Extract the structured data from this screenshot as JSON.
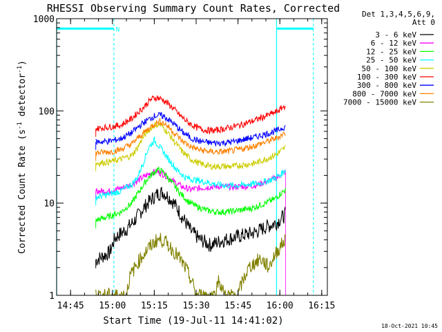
{
  "chart_data": {
    "type": "line",
    "title": "RHESSI Observing Summary Count Rates, Corrected",
    "xlabel": "Start Time (19-Jul-11 14:41:02)",
    "ylabel_pre": "Corrected Count Rate (s",
    "ylabel_sup1": "-1",
    "ylabel_mid": " detector",
    "ylabel_sup2": "-1",
    "ylabel_post": ")",
    "x_unit": "minutes after 14:41:02",
    "xlim": [
      -1.03,
      96.0
    ],
    "ylim": [
      1,
      1000
    ],
    "yscale": "log",
    "xticks": [
      {
        "v": 3.97,
        "label": "14:45"
      },
      {
        "v": 18.97,
        "label": "15:00"
      },
      {
        "v": 33.97,
        "label": "15:15"
      },
      {
        "v": 48.97,
        "label": "15:30"
      },
      {
        "v": 63.97,
        "label": "15:45"
      },
      {
        "v": 78.97,
        "label": "16:00"
      },
      {
        "v": 93.97,
        "label": "16:15"
      }
    ],
    "yticks": [
      {
        "v": 1,
        "label": "1"
      },
      {
        "v": 10,
        "label": "10"
      },
      {
        "v": 100,
        "label": "100"
      },
      {
        "v": 1000,
        "label": "1000"
      }
    ],
    "legend_header": [
      "Det 1,3,4,5,6,9,",
      "Att 0"
    ],
    "data_window": [
      13.0,
      81.0
    ],
    "series": [
      {
        "name": "3 - 6 keV",
        "color": "#000000",
        "points": [
          [
            13,
            2.4
          ],
          [
            18,
            2.9
          ],
          [
            20,
            4.2
          ],
          [
            24,
            5.2
          ],
          [
            27,
            6.5
          ],
          [
            31,
            9.5
          ],
          [
            35,
            12.5
          ],
          [
            37,
            13.2
          ],
          [
            40,
            11
          ],
          [
            44,
            7
          ],
          [
            47,
            5
          ],
          [
            50,
            4.1
          ],
          [
            54,
            3.5
          ],
          [
            58,
            3.9
          ],
          [
            62,
            4.2
          ],
          [
            66,
            4.5
          ],
          [
            70,
            4.8
          ],
          [
            74,
            5.5
          ],
          [
            78,
            6.2
          ],
          [
            81,
            7.5
          ]
        ]
      },
      {
        "name": "6 - 12 keV",
        "color": "#ff00ff",
        "points": [
          [
            13,
            13.5
          ],
          [
            18,
            13.5
          ],
          [
            22,
            14.5
          ],
          [
            26,
            16
          ],
          [
            30,
            19
          ],
          [
            33,
            21.5
          ],
          [
            35,
            22
          ],
          [
            38,
            20
          ],
          [
            41,
            17
          ],
          [
            44,
            15
          ],
          [
            47,
            14
          ],
          [
            50,
            14.5
          ],
          [
            54,
            15
          ],
          [
            58,
            15.2
          ],
          [
            62,
            15
          ],
          [
            66,
            15.2
          ],
          [
            70,
            15.5
          ],
          [
            74,
            17
          ],
          [
            78,
            19
          ],
          [
            81,
            22
          ]
        ]
      },
      {
        "name": "12 - 25 keV",
        "color": "#00ff00",
        "points": [
          [
            13,
            6.5
          ],
          [
            18,
            7.2
          ],
          [
            22,
            8
          ],
          [
            26,
            10
          ],
          [
            29,
            14
          ],
          [
            32,
            19
          ],
          [
            35,
            23
          ],
          [
            37,
            22
          ],
          [
            40,
            17
          ],
          [
            43,
            13
          ],
          [
            46,
            10.5
          ],
          [
            49,
            9.2
          ],
          [
            53,
            8.3
          ],
          [
            57,
            8
          ],
          [
            61,
            8.1
          ],
          [
            65,
            8.4
          ],
          [
            69,
            8.8
          ],
          [
            73,
            9.8
          ],
          [
            77,
            11
          ],
          [
            81,
            14
          ]
        ]
      },
      {
        "name": "25 - 50 keV",
        "color": "#00ffff",
        "points": [
          [
            13,
            11.5
          ],
          [
            18,
            12.5
          ],
          [
            22,
            13.5
          ],
          [
            26,
            16
          ],
          [
            28,
            19
          ],
          [
            30,
            27
          ],
          [
            32,
            40
          ],
          [
            34,
            48
          ],
          [
            36,
            40
          ],
          [
            39,
            30
          ],
          [
            42,
            23
          ],
          [
            45,
            19
          ],
          [
            48,
            18
          ],
          [
            52,
            17
          ],
          [
            56,
            16
          ],
          [
            60,
            15.5
          ],
          [
            64,
            15.5
          ],
          [
            68,
            16
          ],
          [
            72,
            16.5
          ],
          [
            76,
            18
          ],
          [
            79,
            20
          ],
          [
            81,
            23
          ]
        ]
      },
      {
        "name": "50 - 100 keV",
        "color": "#cccc00",
        "points": [
          [
            13,
            27
          ],
          [
            18,
            28
          ],
          [
            22,
            30
          ],
          [
            26,
            33
          ],
          [
            28,
            40
          ],
          [
            30,
            52
          ],
          [
            32,
            62
          ],
          [
            34,
            70
          ],
          [
            36,
            72
          ],
          [
            38,
            62
          ],
          [
            41,
            47
          ],
          [
            44,
            36
          ],
          [
            47,
            30
          ],
          [
            50,
            27
          ],
          [
            54,
            25
          ],
          [
            58,
            25
          ],
          [
            62,
            25
          ],
          [
            66,
            26
          ],
          [
            70,
            27
          ],
          [
            74,
            30
          ],
          [
            78,
            34
          ],
          [
            81,
            40
          ]
        ]
      },
      {
        "name": "100 - 300 keV",
        "color": "#ff0000",
        "points": [
          [
            13,
            64
          ],
          [
            18,
            67
          ],
          [
            22,
            70
          ],
          [
            26,
            83
          ],
          [
            30,
            108
          ],
          [
            33,
            135
          ],
          [
            35,
            140
          ],
          [
            37,
            132
          ],
          [
            40,
            112
          ],
          [
            43,
            90
          ],
          [
            46,
            75
          ],
          [
            49,
            66
          ],
          [
            52,
            62
          ],
          [
            55,
            61
          ],
          [
            58,
            63
          ],
          [
            62,
            67
          ],
          [
            66,
            72
          ],
          [
            70,
            79
          ],
          [
            74,
            88
          ],
          [
            78,
            98
          ],
          [
            81,
            115
          ]
        ]
      },
      {
        "name": "300 - 800 keV",
        "color": "#0000ff",
        "points": [
          [
            13,
            46
          ],
          [
            18,
            47
          ],
          [
            22,
            50
          ],
          [
            26,
            58
          ],
          [
            30,
            74
          ],
          [
            34,
            88
          ],
          [
            36,
            90
          ],
          [
            38,
            85
          ],
          [
            41,
            72
          ],
          [
            44,
            59
          ],
          [
            47,
            51
          ],
          [
            50,
            47
          ],
          [
            54,
            45
          ],
          [
            58,
            45
          ],
          [
            62,
            46
          ],
          [
            66,
            49
          ],
          [
            70,
            52
          ],
          [
            74,
            56
          ],
          [
            78,
            61
          ],
          [
            81,
            68
          ]
        ]
      },
      {
        "name": "800 - 7000 keV",
        "color": "#ff8000",
        "points": [
          [
            13,
            35
          ],
          [
            18,
            36
          ],
          [
            22,
            38
          ],
          [
            26,
            44
          ],
          [
            30,
            57
          ],
          [
            34,
            72
          ],
          [
            36,
            77
          ],
          [
            38,
            72
          ],
          [
            41,
            58
          ],
          [
            44,
            47
          ],
          [
            47,
            41
          ],
          [
            50,
            38
          ],
          [
            54,
            36
          ],
          [
            58,
            36
          ],
          [
            62,
            37
          ],
          [
            66,
            39
          ],
          [
            70,
            42
          ],
          [
            74,
            46
          ],
          [
            78,
            51
          ],
          [
            81,
            58
          ]
        ]
      },
      {
        "name": "7000 - 15000 keV",
        "color": "#808000",
        "points": [
          [
            13,
            1.0
          ],
          [
            24,
            1.0
          ],
          [
            25,
            1.5
          ],
          [
            27,
            2.0
          ],
          [
            29,
            2.5
          ],
          [
            31,
            3.0
          ],
          [
            33,
            3.5
          ],
          [
            35,
            4.0
          ],
          [
            37,
            4.0
          ],
          [
            39,
            3.5
          ],
          [
            41,
            3.0
          ],
          [
            43,
            2.5
          ],
          [
            45,
            2.0
          ],
          [
            47,
            1.5
          ],
          [
            49,
            1.0
          ],
          [
            56,
            1.0
          ],
          [
            57,
            1.5
          ],
          [
            59,
            1.0
          ],
          [
            64,
            1.0
          ],
          [
            66,
            1.5
          ],
          [
            68,
            2.0
          ],
          [
            72,
            2.5
          ],
          [
            75,
            2.0
          ],
          [
            78,
            3.0
          ],
          [
            81,
            4.0
          ]
        ]
      }
    ],
    "annotations": {
      "night_levels": [
        {
          "x0": -1.03,
          "x1": 19.5,
          "y": 780
        },
        {
          "x0": 77.8,
          "x1": 91.0,
          "y": 780
        }
      ],
      "dashed_lines_x": [
        19.5,
        91.0
      ],
      "solid_lines_x": [
        -1.03,
        77.8
      ],
      "n_label": "N",
      "n_label_x": 20.2
    },
    "footer": "18-Oct-2021 10:45",
    "grid": false
  }
}
